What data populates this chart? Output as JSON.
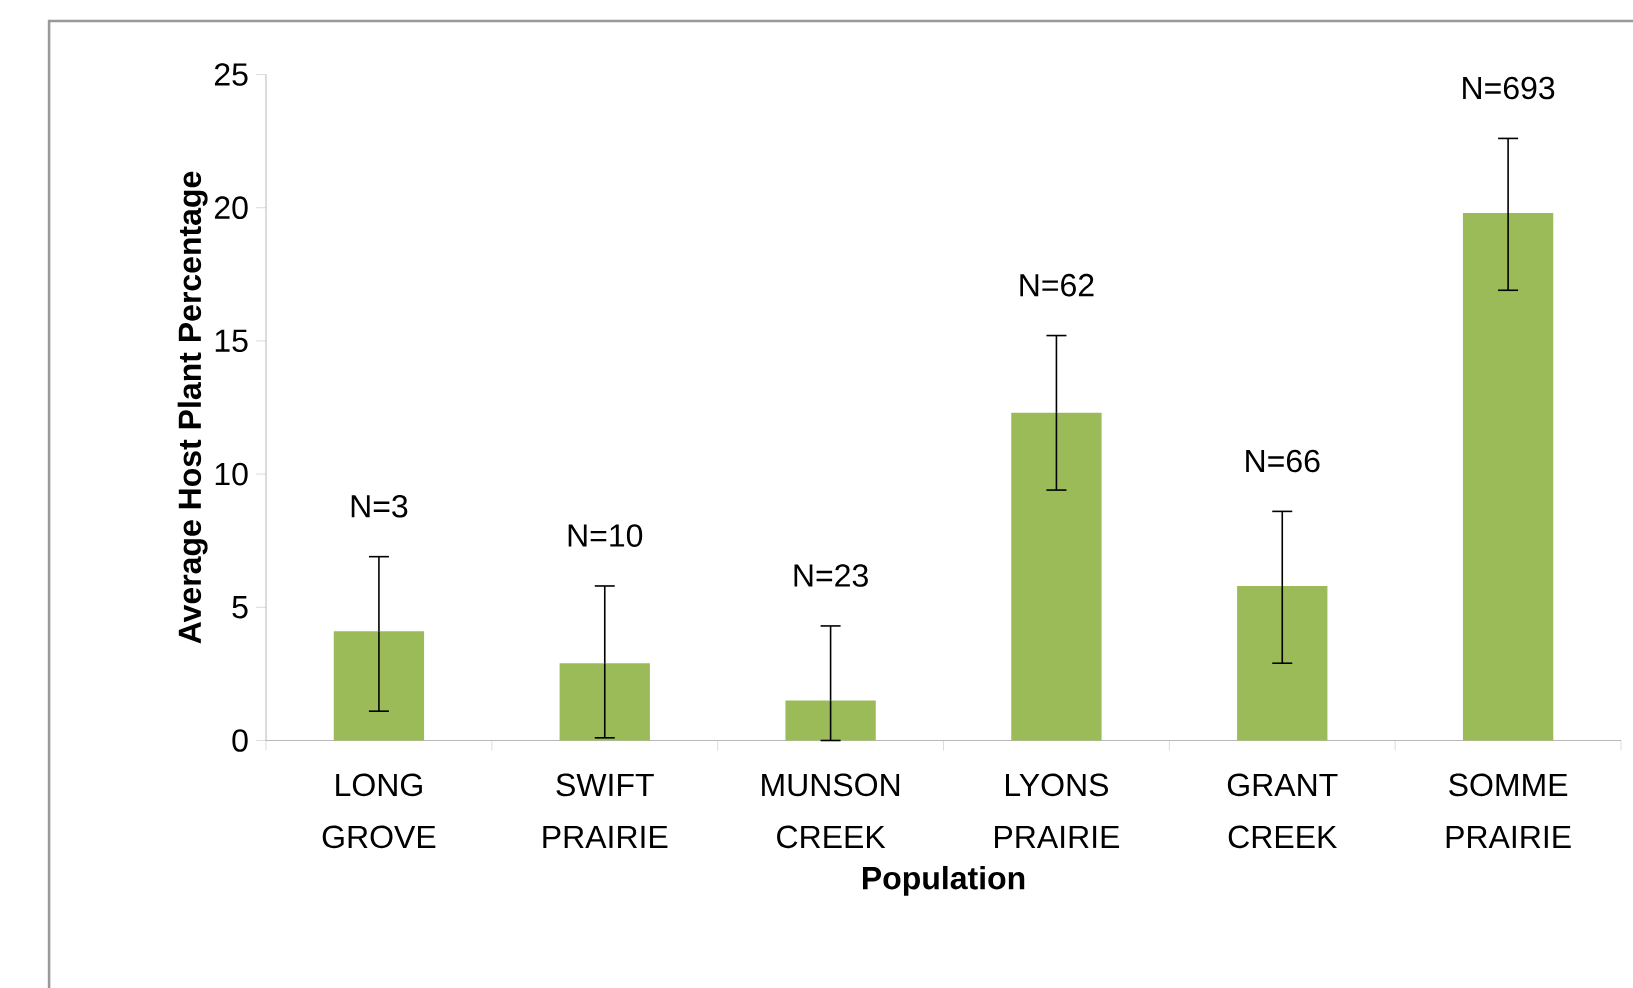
{
  "chart_data": {
    "type": "bar",
    "xlabel": "Population",
    "ylabel": "Average Host Plant Percentage",
    "categories": [
      "LONG GROVE",
      "SWIFT PRAIRIE",
      "MUNSON CREEK",
      "LYONS PRAIRIE",
      "GRANT CREEK",
      "SOMME PRAIRIE"
    ],
    "values": [
      4.1,
      2.9,
      1.5,
      12.3,
      5.8,
      19.8
    ],
    "errors": [
      [
        1.1,
        6.9
      ],
      [
        0.1,
        5.8
      ],
      [
        0,
        4.3
      ],
      [
        9.4,
        15.2
      ],
      [
        2.9,
        8.6
      ],
      [
        16.9,
        22.6
      ]
    ],
    "color": "#9bbb59",
    "ylim": [
      0,
      25
    ],
    "yticks": [
      0,
      5,
      10,
      15,
      20,
      25
    ],
    "grid": false,
    "annotations": [
      "N=3",
      "N=10",
      "N=23",
      "N=62",
      "N=66",
      "N=693"
    ]
  }
}
